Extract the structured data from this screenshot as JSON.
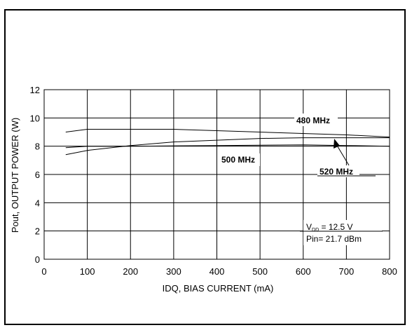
{
  "chart_data": {
    "type": "line",
    "xlabel": "IDQ, BIAS CURRENT (mA)",
    "ylabel": "Pout, OUTPUT POWER (W)",
    "xlim": [
      0,
      800
    ],
    "ylim": [
      0,
      12
    ],
    "xticks": [
      0,
      100,
      200,
      300,
      400,
      500,
      600,
      700,
      800
    ],
    "yticks": [
      0,
      2,
      4,
      6,
      8,
      10,
      12
    ],
    "grid": true,
    "series": [
      {
        "name": "480 MHz",
        "x": [
          50,
          100,
          300,
          500,
          700,
          800
        ],
        "y": [
          9.0,
          9.2,
          9.2,
          9.0,
          8.8,
          8.65
        ]
      },
      {
        "name": "500 MHz",
        "x": [
          50,
          100,
          200,
          300,
          500,
          600,
          700,
          800
        ],
        "y": [
          7.4,
          7.7,
          8.05,
          8.3,
          8.55,
          8.6,
          8.6,
          8.6
        ]
      },
      {
        "name": "520 MHz",
        "x": [
          50,
          100,
          200,
          400,
          600,
          700,
          800
        ],
        "y": [
          7.9,
          8.0,
          8.0,
          8.05,
          8.1,
          8.05,
          8.0
        ]
      }
    ],
    "annotations": [
      {
        "text": "480 MHz"
      },
      {
        "text": "500 MHz"
      },
      {
        "text": "520 MHz"
      },
      {
        "text_main": "V",
        "text_sub": "DD",
        "text_rest": " = 12.5 V"
      },
      {
        "text": "Pin= 21.7 dBm"
      }
    ]
  }
}
